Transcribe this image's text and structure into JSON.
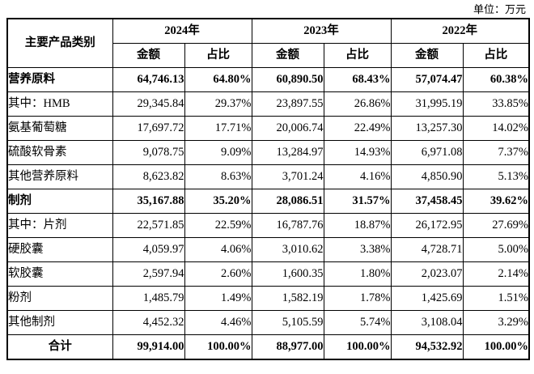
{
  "unit_label": "单位：万元",
  "table": {
    "category_header": "主要产品类别",
    "year_headers": [
      "2024年",
      "2023年",
      "2022年"
    ],
    "sub_headers": {
      "amount": "金额",
      "ratio": "占比"
    },
    "rows": [
      {
        "category": "营养原料",
        "bold": true,
        "center": false,
        "values": [
          "64,746.13",
          "64.80%",
          "60,890.50",
          "68.43%",
          "57,074.47",
          "60.38%"
        ]
      },
      {
        "category": "其中：HMB",
        "bold": false,
        "center": false,
        "values": [
          "29,345.84",
          "29.37%",
          "23,897.55",
          "26.86%",
          "31,995.19",
          "33.85%"
        ]
      },
      {
        "category": "氨基葡萄糖",
        "bold": false,
        "center": false,
        "values": [
          "17,697.72",
          "17.71%",
          "20,006.74",
          "22.49%",
          "13,257.30",
          "14.02%"
        ]
      },
      {
        "category": "硫酸软骨素",
        "bold": false,
        "center": false,
        "values": [
          "9,078.75",
          "9.09%",
          "13,284.97",
          "14.93%",
          "6,971.08",
          "7.37%"
        ]
      },
      {
        "category": "其他营养原料",
        "bold": false,
        "center": false,
        "values": [
          "8,623.82",
          "8.63%",
          "3,701.24",
          "4.16%",
          "4,850.90",
          "5.13%"
        ]
      },
      {
        "category": "制剂",
        "bold": true,
        "center": false,
        "values": [
          "35,167.88",
          "35.20%",
          "28,086.51",
          "31.57%",
          "37,458.45",
          "39.62%"
        ]
      },
      {
        "category": "其中：片剂",
        "bold": false,
        "center": false,
        "values": [
          "22,571.85",
          "22.59%",
          "16,787.76",
          "18.87%",
          "26,172.95",
          "27.69%"
        ]
      },
      {
        "category": "硬胶囊",
        "bold": false,
        "center": false,
        "values": [
          "4,059.97",
          "4.06%",
          "3,010.62",
          "3.38%",
          "4,728.71",
          "5.00%"
        ]
      },
      {
        "category": "软胶囊",
        "bold": false,
        "center": false,
        "values": [
          "2,597.94",
          "2.60%",
          "1,600.35",
          "1.80%",
          "2,023.07",
          "2.14%"
        ]
      },
      {
        "category": "粉剂",
        "bold": false,
        "center": false,
        "values": [
          "1,485.79",
          "1.49%",
          "1,582.19",
          "1.78%",
          "1,425.69",
          "1.51%"
        ]
      },
      {
        "category": "其他制剂",
        "bold": false,
        "center": false,
        "values": [
          "4,452.32",
          "4.46%",
          "5,105.59",
          "5.74%",
          "3,108.04",
          "3.29%"
        ]
      },
      {
        "category": "合计",
        "bold": true,
        "center": true,
        "values": [
          "99,914.00",
          "100.00%",
          "88,977.00",
          "100.00%",
          "94,532.92",
          "100.00%"
        ]
      }
    ]
  }
}
